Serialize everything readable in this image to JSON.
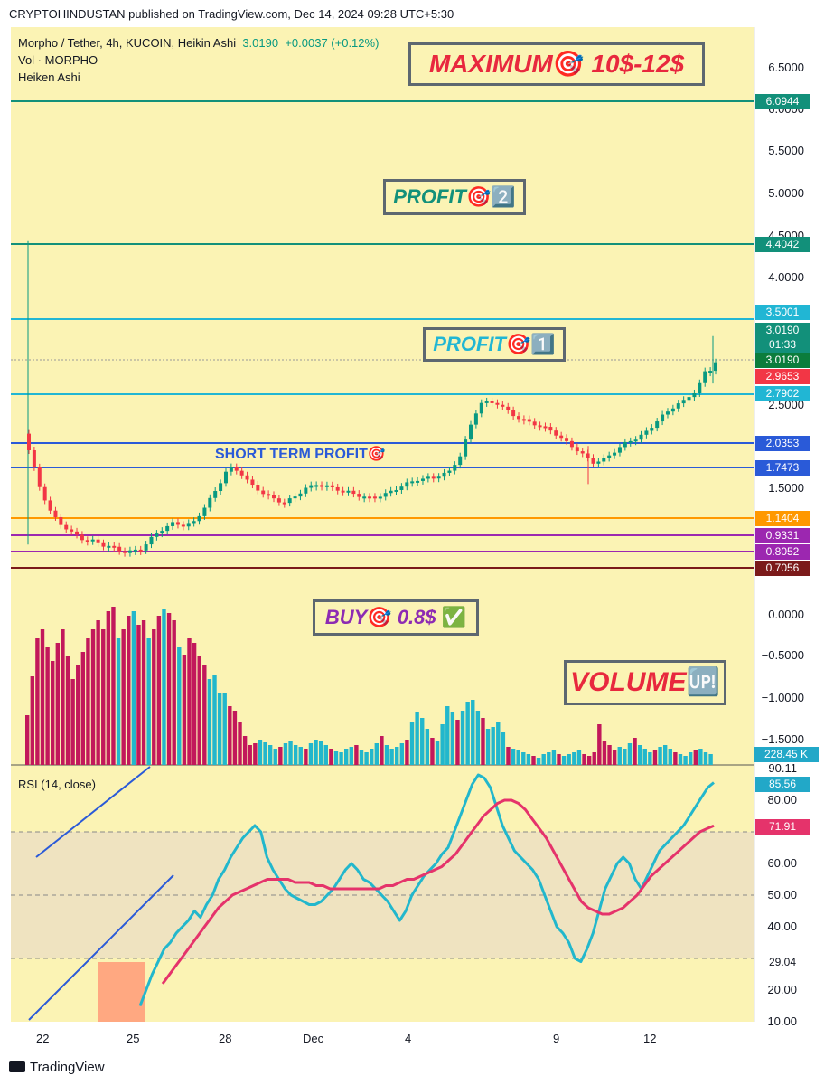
{
  "header": {
    "publisher_line": "CRYPTOHINDUSTAN published on TradingView.com, Dec 14, 2024 09:28 UTC+5:30"
  },
  "legend": {
    "symbol": "Morpho / Tether, 4h, KUCOIN, Heikin Ashi",
    "last": "3.0190",
    "change": "+0.0037 (+0.12%)",
    "vol_label": "Vol · MORPHO",
    "ha_label": "Heiken Ashi",
    "rsi_label": "RSI (14, close)"
  },
  "banners": {
    "maximum": {
      "text": "MAXIMUM",
      "emoji": "🎯",
      "suffix": " 10$-12$",
      "color": "#e8283e"
    },
    "profit2": {
      "text": "PROFIT",
      "emoji": "🎯2️⃣",
      "color": "#12907a"
    },
    "profit1": {
      "text": "PROFIT",
      "emoji": "🎯1️⃣",
      "color": "#21b6d4"
    },
    "short_term": {
      "text": "SHORT TERM PROFIT",
      "emoji": "🎯",
      "color": "#2a5ad8"
    },
    "buy": {
      "text": "BUY",
      "emoji": "🎯",
      "suffix": " 0.8$ ",
      "check": "✅",
      "color": "#8d2bb3"
    },
    "volume": {
      "text": "VOLUME",
      "emoji": "🆙",
      "color": "#e8283e"
    }
  },
  "price_axis_ticks": [
    "6.5000",
    "6.0000",
    "5.5000",
    "5.0000",
    "4.5000",
    "4.0000",
    "2.5000",
    "1.5000",
    "0.0000",
    "−0.5000",
    "−1.0000",
    "−1.5000"
  ],
  "price_tags": [
    {
      "label": "6.0944",
      "color": "#12907a"
    },
    {
      "label": "4.4042",
      "color": "#12907a"
    },
    {
      "label": "3.5001",
      "color": "#21b6d4"
    },
    {
      "label": "3.0190",
      "color": "#12907a"
    },
    {
      "label": "01:33",
      "color": "#12907a"
    },
    {
      "label": "3.0190",
      "color": "#0b7d3c"
    },
    {
      "label": "2.9653",
      "color": "#f23645"
    },
    {
      "label": "2.7902",
      "color": "#21b6d4"
    },
    {
      "label": "2.0353",
      "color": "#2a5ad8"
    },
    {
      "label": "1.7473",
      "color": "#2a5ad8"
    },
    {
      "label": "1.1404",
      "color": "#ff9800"
    },
    {
      "label": "0.9331",
      "color": "#9c27b0"
    },
    {
      "label": "0.8052",
      "color": "#9c27b0"
    },
    {
      "label": "0.7056",
      "color": "#7b1a1a"
    },
    {
      "label": "228.45 K",
      "color": "#22a8c8"
    }
  ],
  "rsi_axis_ticks": [
    "90.11",
    "80.00",
    "70.00",
    "60.00",
    "50.00",
    "40.00",
    "20.00",
    "10.00"
  ],
  "rsi_tags": [
    {
      "label": "85.56",
      "color": "#22a8c8"
    },
    {
      "label": "71.91",
      "color": "#e5336b"
    },
    {
      "label": "29.04",
      "color": "#ffffff"
    }
  ],
  "x_axis_ticks": [
    "22",
    "25",
    "28",
    "Dec",
    "4",
    "9",
    "12"
  ],
  "footer": {
    "logo": "TradingView"
  },
  "colors": {
    "background": "#fbf3b4",
    "up": "#089981",
    "down": "#f23645",
    "vol_up": "#22b7cc",
    "vol_down": "#c2185b",
    "rsi": "#22b7cc",
    "rsi_ma": "#e5336b"
  },
  "chart_data": [
    {
      "type": "candlestick",
      "title": "Morpho / Tether, 4h, KUCOIN, Heikin Ashi",
      "ylim": [
        0.7,
        6.6
      ],
      "horizontal_levels": [
        6.0944,
        4.4042,
        3.5001,
        2.7902,
        2.0353,
        1.7473,
        1.1404,
        0.9331,
        0.8052,
        0.7056
      ],
      "x_ticks": [
        "22",
        "25",
        "28",
        "Dec",
        "4",
        "9",
        "12"
      ],
      "close_path": [
        1.95,
        1.5,
        1.2,
        1.05,
        0.95,
        0.9,
        0.88,
        0.85,
        0.82,
        0.8,
        0.82,
        0.9,
        1.0,
        1.08,
        1.05,
        1.1,
        1.3,
        1.5,
        1.75,
        1.7,
        1.55,
        1.45,
        1.38,
        1.32,
        1.4,
        1.5,
        1.55,
        1.52,
        1.48,
        1.45,
        1.4,
        1.38,
        1.42,
        1.48,
        1.55,
        1.6,
        1.62,
        1.65,
        1.7,
        1.9,
        2.3,
        2.6,
        2.55,
        2.45,
        2.35,
        2.3,
        2.25,
        2.2,
        2.1,
        2.0,
        1.9,
        1.8,
        1.85,
        1.95,
        2.05,
        2.1,
        2.2,
        2.35,
        2.45,
        2.6,
        2.8,
        2.97,
        3.02
      ],
      "last_close": 3.019
    },
    {
      "type": "bar",
      "title": "Vol · MORPHO",
      "last_value": "228.45 K",
      "values": [
        55,
        98,
        140,
        150,
        130,
        115,
        135,
        150,
        120,
        95,
        110,
        125,
        140,
        150,
        160,
        150,
        170,
        175,
        140,
        150,
        165,
        170,
        155,
        160,
        140,
        150,
        165,
        172,
        168,
        160,
        130,
        122,
        140,
        135,
        120,
        110,
        95,
        100,
        80,
        80,
        65,
        60,
        48,
        32,
        22,
        24,
        28,
        25,
        22,
        18,
        20,
        24,
        26,
        22,
        20,
        18,
        24,
        28,
        26,
        22,
        18,
        15,
        14,
        18,
        20,
        22,
        16,
        14,
        18,
        24,
        32,
        22,
        18,
        20,
        24,
        28,
        48,
        58,
        52,
        40,
        30,
        26,
        45,
        65,
        58,
        50,
        60,
        70,
        72,
        60,
        52,
        40,
        42,
        48,
        36,
        20,
        18,
        16,
        14,
        12,
        10,
        8,
        12,
        14,
        16,
        12,
        10,
        12,
        14,
        16,
        12,
        10,
        14,
        45,
        26,
        22,
        16,
        20,
        18,
        24,
        30,
        22,
        18,
        14,
        16,
        20,
        22,
        18,
        14,
        12,
        10,
        14,
        16,
        18,
        14,
        12
      ]
    },
    {
      "type": "line",
      "title": "RSI (14, close)",
      "ylim": [
        10,
        90
      ],
      "band": [
        30,
        70
      ],
      "series": [
        {
          "values": [
            15,
            20,
            25,
            29,
            33,
            35,
            38,
            40,
            42,
            45,
            43,
            47,
            50,
            55,
            58,
            62,
            65,
            68,
            70,
            72,
            70,
            62,
            58,
            55,
            52,
            50,
            49,
            48,
            47,
            47,
            48,
            50,
            52,
            55,
            58,
            60,
            58,
            55,
            54,
            52,
            50,
            48,
            45,
            42,
            45,
            50,
            53,
            56,
            58,
            60,
            63,
            65,
            70,
            75,
            80,
            85,
            88,
            87,
            84,
            78,
            72,
            68,
            64,
            62,
            60,
            58,
            55,
            50,
            45,
            40,
            38,
            35,
            30,
            29,
            33,
            38,
            45,
            52,
            56,
            60,
            62,
            60,
            55,
            52,
            56,
            60,
            64,
            66,
            68,
            70,
            72,
            75,
            78,
            81,
            84,
            85.56
          ]
        },
        {
          "values": [
            22,
            25,
            28,
            31,
            34,
            37,
            40,
            43,
            46,
            48,
            50,
            51,
            52,
            53,
            54,
            55,
            55,
            55,
            55,
            54,
            54,
            54,
            53,
            53,
            52,
            52,
            52,
            52,
            52,
            52,
            52,
            52,
            53,
            53,
            54,
            55,
            55,
            56,
            57,
            58,
            59,
            61,
            63,
            66,
            69,
            72,
            75,
            77,
            79,
            80,
            80,
            79,
            77,
            74,
            71,
            68,
            64,
            60,
            56,
            52,
            48,
            46,
            45,
            44,
            44,
            45,
            46,
            48,
            50,
            53,
            56,
            58,
            60,
            62,
            64,
            66,
            68,
            70,
            71,
            71.91
          ]
        }
      ]
    }
  ]
}
